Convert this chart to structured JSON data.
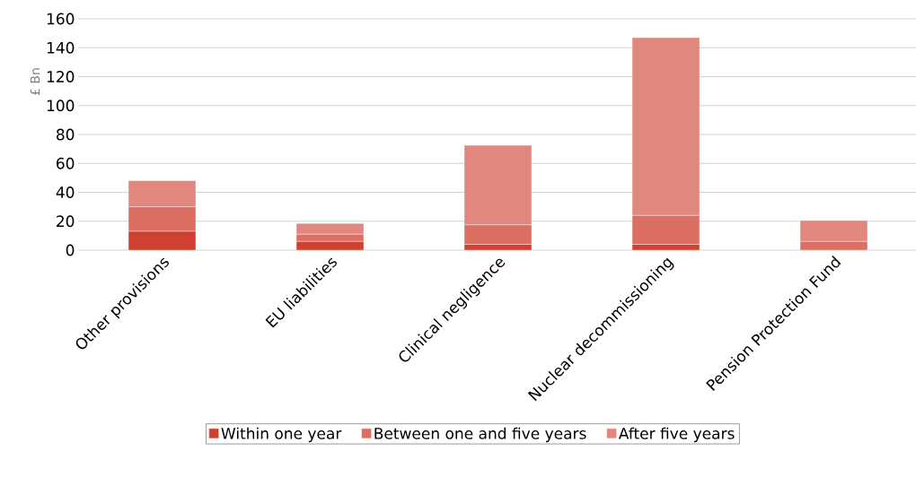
{
  "chart_data": {
    "type": "bar",
    "stacked": true,
    "ylabel": "£ Bn",
    "categories": [
      "Other provisions",
      "EU liabilities",
      "Clinical negligence",
      "Nuclear decommissioning",
      "Pension Protection Fund"
    ],
    "series": [
      {
        "name": "Within one year",
        "color": "#d04030",
        "values": [
          13,
          6,
          4,
          4,
          0
        ]
      },
      {
        "name": "Between one and five years",
        "color": "#dc6f63",
        "values": [
          17,
          5,
          13.5,
          20,
          6
        ]
      },
      {
        "name": "After five years",
        "color": "#e0877e",
        "values": [
          18,
          7.5,
          55,
          123,
          14.5
        ]
      }
    ],
    "ylim": [
      0,
      160
    ],
    "yticks": [
      0,
      20,
      40,
      60,
      80,
      100,
      120,
      140,
      160
    ],
    "grid": "y",
    "legend": "bottom"
  }
}
